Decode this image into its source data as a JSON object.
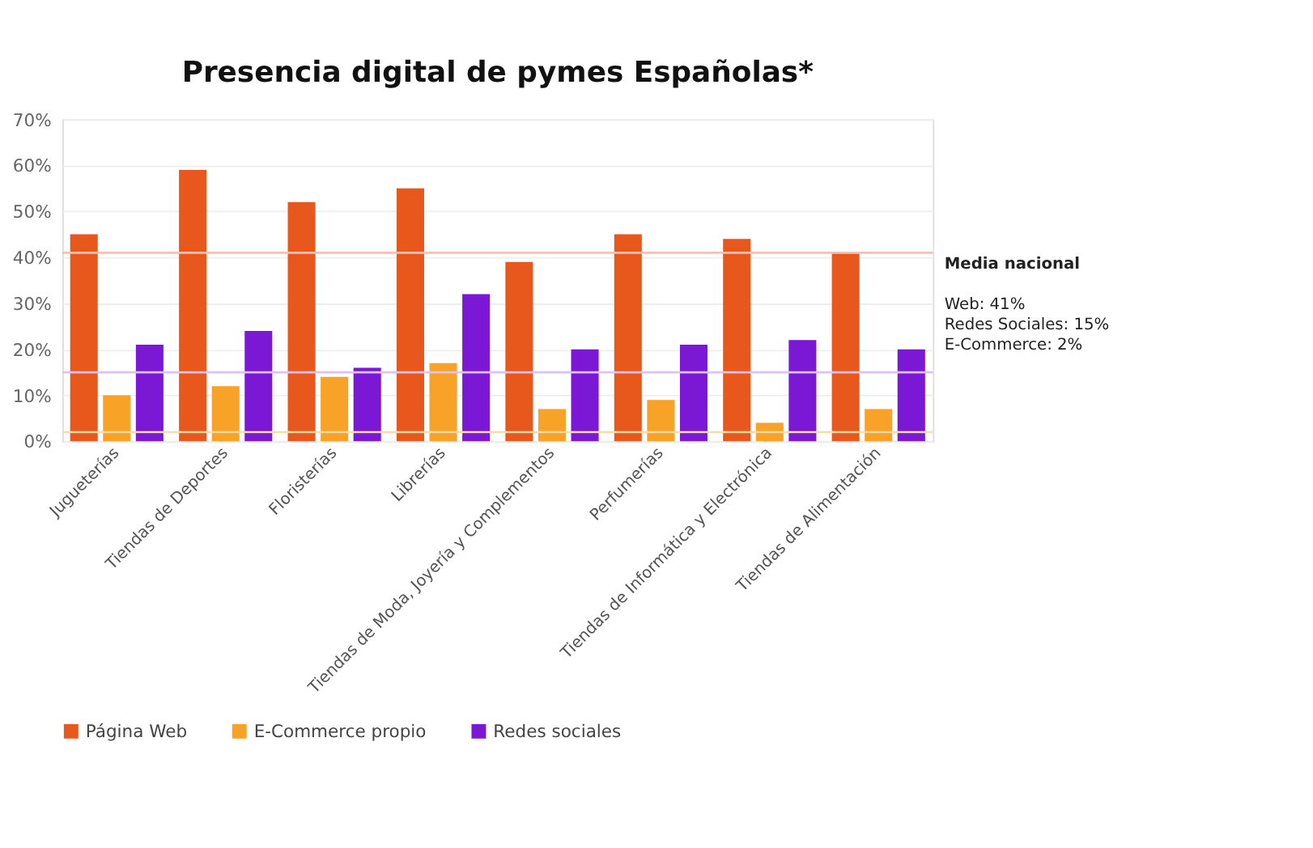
{
  "chart_data": {
    "type": "bar",
    "title": "Presencia digital de pymes Españolas*",
    "categories": [
      "Jugueterías",
      "Tiendas de Deportes",
      "Floristerías",
      "Librerías",
      "Tiendas de Moda, Joyería y Complementos",
      "Perfumerías",
      "Tiendas de Informática y Electrónica",
      "Tiendas de Alimentación"
    ],
    "series": [
      {
        "name": "Página Web",
        "color": "#e8581c",
        "values": [
          45,
          59,
          52,
          55,
          39,
          45,
          44,
          41
        ]
      },
      {
        "name": "E-Commerce propio",
        "color": "#f9a228",
        "values": [
          10,
          12,
          14,
          17,
          7,
          9,
          4,
          7
        ]
      },
      {
        "name": "Redes sociales",
        "color": "#7a18d6",
        "values": [
          21,
          24,
          16,
          32,
          20,
          21,
          22,
          20
        ]
      }
    ],
    "ylim": [
      0,
      70
    ],
    "yticks": [
      {
        "value": 0,
        "label": "0%"
      },
      {
        "value": 10,
        "label": "10%"
      },
      {
        "value": 20,
        "label": "20%"
      },
      {
        "value": 30,
        "label": "30%"
      },
      {
        "value": 40,
        "label": "40%"
      },
      {
        "value": 50,
        "label": "50%"
      },
      {
        "value": 60,
        "label": "60%"
      },
      {
        "value": 70,
        "label": "70%"
      }
    ],
    "ref_lines": [
      {
        "axis": "y",
        "value": 41,
        "color": "#f6bfb2"
      },
      {
        "axis": "y",
        "value": 15,
        "color": "#dcc3f3"
      },
      {
        "axis": "y",
        "value": 2,
        "color": "#fbdca8"
      }
    ],
    "annotations": [
      "Media nacional",
      "Web: 41%",
      "Redes Sociales: 15%",
      "E-Commerce: 2%"
    ],
    "grid": "y",
    "legend": "bottom"
  }
}
